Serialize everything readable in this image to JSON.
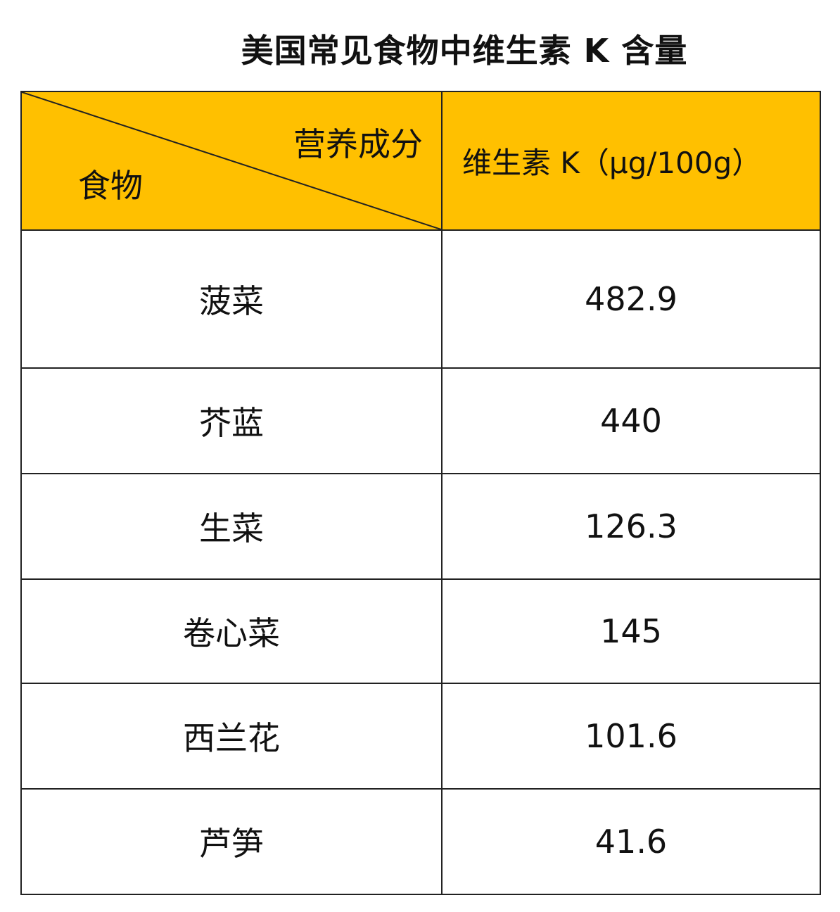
{
  "title": "美国常见食物中维生素 K 含量",
  "header": {
    "corner_top_right": "营养成分",
    "corner_bottom_left": "食物",
    "value_column": "维生素 K（μg/100g）",
    "background_color": "#FFC000"
  },
  "rows": [
    {
      "food": "菠菜",
      "value": "482.9"
    },
    {
      "food": "芥蓝",
      "value": "440"
    },
    {
      "food": "生菜",
      "value": "126.3"
    },
    {
      "food": "卷心菜",
      "value": "145"
    },
    {
      "food": "西兰花",
      "value": "101.6"
    },
    {
      "food": "芦笋",
      "value": "41.6"
    }
  ]
}
